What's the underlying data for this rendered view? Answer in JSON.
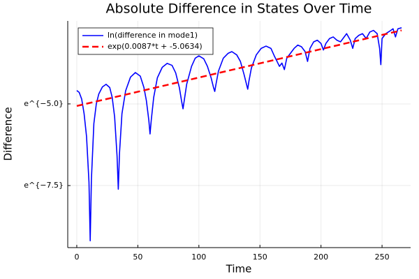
{
  "chart_data": {
    "type": "line",
    "title": "Absolute Difference in States Over Time",
    "x_label": "Time",
    "y_label": "Difference",
    "xlim": [
      -7.4,
      273.4
    ],
    "xticks": [
      0,
      50,
      100,
      150,
      200,
      250
    ],
    "ylim": [
      -9.4,
      -2.46
    ],
    "yticks": [
      {
        "value": -5.0,
        "label": "e^{−5.0}"
      },
      {
        "value": -7.5,
        "label": "e^{−7.5}"
      }
    ],
    "grid": true,
    "legend": "top-left",
    "series": [
      {
        "name": "ln(difference in mode1)",
        "color": "#0000ff",
        "style": "solid",
        "x": [
          0,
          2,
          4,
          6,
          8,
          10,
          11,
          12,
          14,
          16,
          18,
          21,
          24,
          27,
          29,
          31,
          33,
          34,
          35,
          37,
          40,
          44,
          48,
          52,
          55,
          57,
          59,
          60,
          61,
          63,
          66,
          70,
          74,
          78,
          81,
          84,
          86,
          87,
          88,
          90,
          94,
          97,
          100,
          104,
          107,
          110,
          112,
          113,
          114,
          116,
          120,
          124,
          127,
          131,
          134,
          137,
          139,
          140,
          141,
          143,
          147,
          151,
          155,
          159,
          162,
          164,
          166,
          168,
          170,
          172,
          175,
          178,
          181,
          184,
          187,
          189,
          191,
          194,
          197,
          200,
          202,
          204,
          207,
          210,
          213,
          216,
          218,
          221,
          224,
          226,
          228,
          231,
          234,
          237,
          240,
          243,
          246,
          248,
          249,
          250,
          253,
          256,
          259,
          261,
          263,
          266
        ],
        "values": [
          -4.59,
          -4.65,
          -4.85,
          -5.3,
          -6.0,
          -7.4,
          -9.19,
          -7.3,
          -5.6,
          -5.0,
          -4.7,
          -4.48,
          -4.4,
          -4.5,
          -4.8,
          -5.4,
          -6.6,
          -7.61,
          -6.5,
          -5.3,
          -4.6,
          -4.18,
          -4.04,
          -4.15,
          -4.5,
          -4.9,
          -5.5,
          -5.92,
          -5.5,
          -4.8,
          -4.2,
          -3.88,
          -3.76,
          -3.82,
          -4.05,
          -4.5,
          -4.95,
          -5.15,
          -4.9,
          -4.4,
          -3.85,
          -3.6,
          -3.53,
          -3.62,
          -3.85,
          -4.2,
          -4.5,
          -4.62,
          -4.4,
          -4.0,
          -3.6,
          -3.45,
          -3.4,
          -3.5,
          -3.7,
          -4.1,
          -4.4,
          -4.55,
          -4.3,
          -3.9,
          -3.5,
          -3.3,
          -3.23,
          -3.3,
          -3.55,
          -3.7,
          -3.85,
          -3.75,
          -3.95,
          -3.6,
          -3.45,
          -3.3,
          -3.2,
          -3.25,
          -3.4,
          -3.7,
          -3.3,
          -3.1,
          -3.05,
          -3.15,
          -3.35,
          -3.15,
          -3.0,
          -2.95,
          -3.05,
          -3.1,
          -3.0,
          -2.85,
          -3.05,
          -3.3,
          -3.0,
          -2.9,
          -2.85,
          -3.0,
          -2.8,
          -2.75,
          -2.85,
          -3.3,
          -3.8,
          -3.0,
          -2.85,
          -2.78,
          -2.7,
          -2.95,
          -2.7,
          -2.67
        ]
      },
      {
        "name": "exp(0.0087*t + -5.0634)",
        "color": "#ff0000",
        "style": "dashed",
        "x": [
          0,
          266
        ],
        "values": [
          -5.0634,
          -2.7492
        ]
      }
    ]
  }
}
